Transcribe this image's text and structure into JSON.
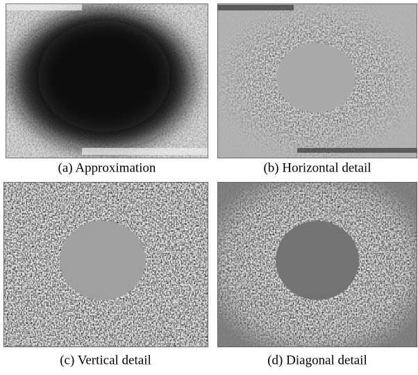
{
  "panels": [
    {
      "caption": "(a) Approximation"
    },
    {
      "caption": "(b) Horizontal detail"
    },
    {
      "caption": "(c) Vertical detail"
    },
    {
      "caption": "(d) Diagonal detail"
    }
  ]
}
